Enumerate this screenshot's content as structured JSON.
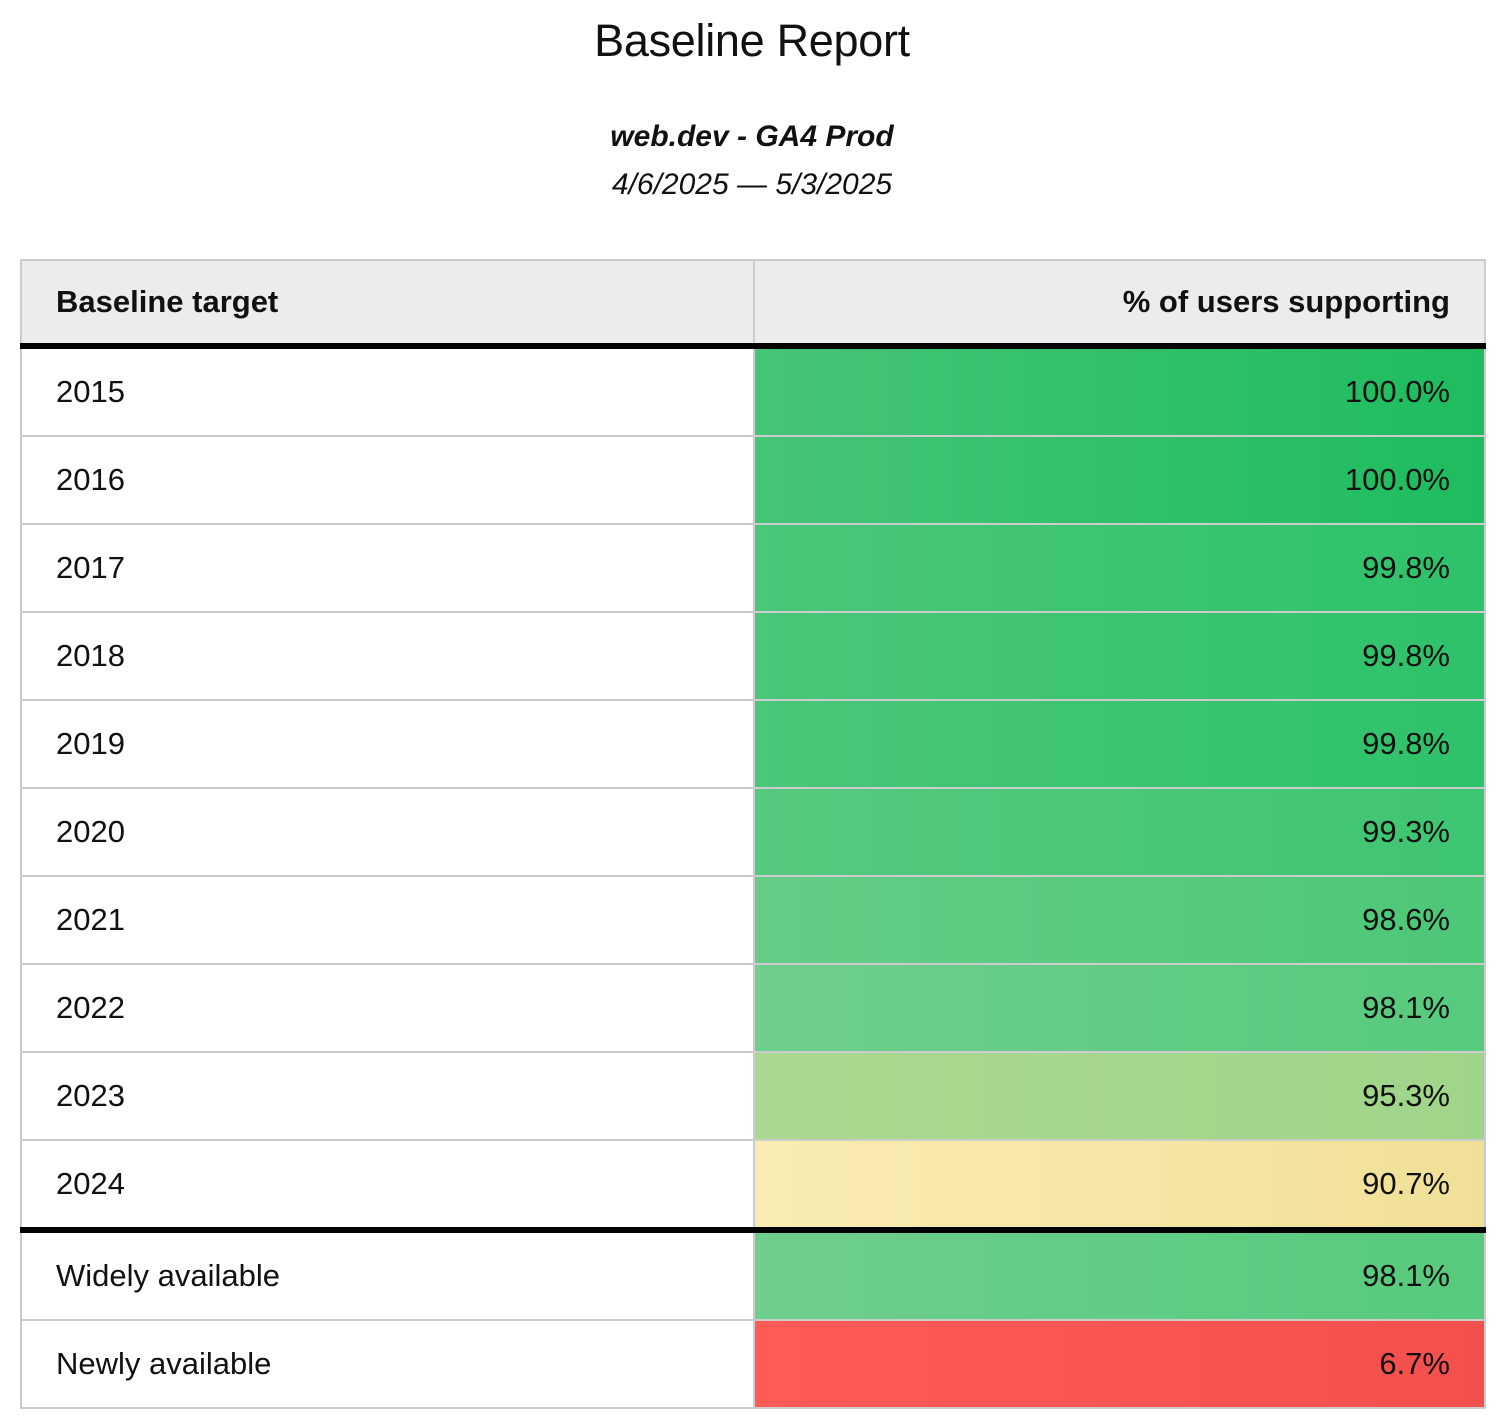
{
  "report": {
    "title": "Baseline Report",
    "subtitle": "web.dev - GA4 Prod",
    "date_range": "4/6/2025 — 5/3/2025"
  },
  "table": {
    "columns": {
      "target": "Baseline target",
      "value": "% of users supporting"
    },
    "rows": [
      {
        "target": "2015",
        "value": "100.0%",
        "bg": {
          "from": "#45c576",
          "to": "#1ebc5f"
        }
      },
      {
        "target": "2016",
        "value": "100.0%",
        "bg": {
          "from": "#45c576",
          "to": "#1ebc5f"
        }
      },
      {
        "target": "2017",
        "value": "99.8%",
        "bg": {
          "from": "#4ac778",
          "to": "#2ec26a"
        }
      },
      {
        "target": "2018",
        "value": "99.8%",
        "bg": {
          "from": "#4ac778",
          "to": "#2ec26a"
        }
      },
      {
        "target": "2019",
        "value": "99.8%",
        "bg": {
          "from": "#4ac778",
          "to": "#2ec26a"
        }
      },
      {
        "target": "2020",
        "value": "99.3%",
        "bg": {
          "from": "#55c97d",
          "to": "#3ec672"
        }
      },
      {
        "target": "2021",
        "value": "98.6%",
        "bg": {
          "from": "#65cc85",
          "to": "#4cc877"
        }
      },
      {
        "target": "2022",
        "value": "98.1%",
        "bg": {
          "from": "#6ece8b",
          "to": "#57ca7d"
        }
      },
      {
        "target": "2023",
        "value": "95.3%",
        "bg": {
          "from": "#abd890",
          "to": "#9fd58a"
        }
      },
      {
        "target": "2024",
        "value": "90.7%",
        "bg": {
          "from": "#f9ecb3",
          "to": "#f0e097"
        }
      },
      {
        "target": "Widely available",
        "value": "98.1%",
        "bg": {
          "from": "#6ece8b",
          "to": "#57ca7d"
        }
      },
      {
        "target": "Newly available",
        "value": "6.7%",
        "bg": {
          "from": "#fe5b57",
          "to": "#f34f4c"
        }
      }
    ]
  },
  "colors": {
    "header_background": "#ececec",
    "grid_line": "#cccccc",
    "heavy_divider": "#000000",
    "green_full": "#1ebc5f",
    "green_light": "#9fd58a",
    "yellow_warn": "#f0e097",
    "red_low": "#f34f4c"
  },
  "chart_data": {
    "type": "table",
    "title": "Baseline Report",
    "subtitle": "web.dev - GA4 Prod",
    "date_range": "4/6/2025 — 5/3/2025",
    "columns": [
      "Baseline target",
      "% of users supporting"
    ],
    "rows": [
      [
        "2015",
        100.0
      ],
      [
        "2016",
        100.0
      ],
      [
        "2017",
        99.8
      ],
      [
        "2018",
        99.8
      ],
      [
        "2019",
        99.8
      ],
      [
        "2020",
        99.3
      ],
      [
        "2021",
        98.6
      ],
      [
        "2022",
        98.1
      ],
      [
        "2023",
        95.3
      ],
      [
        "2024",
        90.7
      ],
      [
        "Widely available",
        98.1
      ],
      [
        "Newly available",
        6.7
      ]
    ],
    "value_unit": "%",
    "notes": "Value cells colored on a red-yellow-green scale by percentage; heavy black rule separates year targets from availability rows"
  }
}
